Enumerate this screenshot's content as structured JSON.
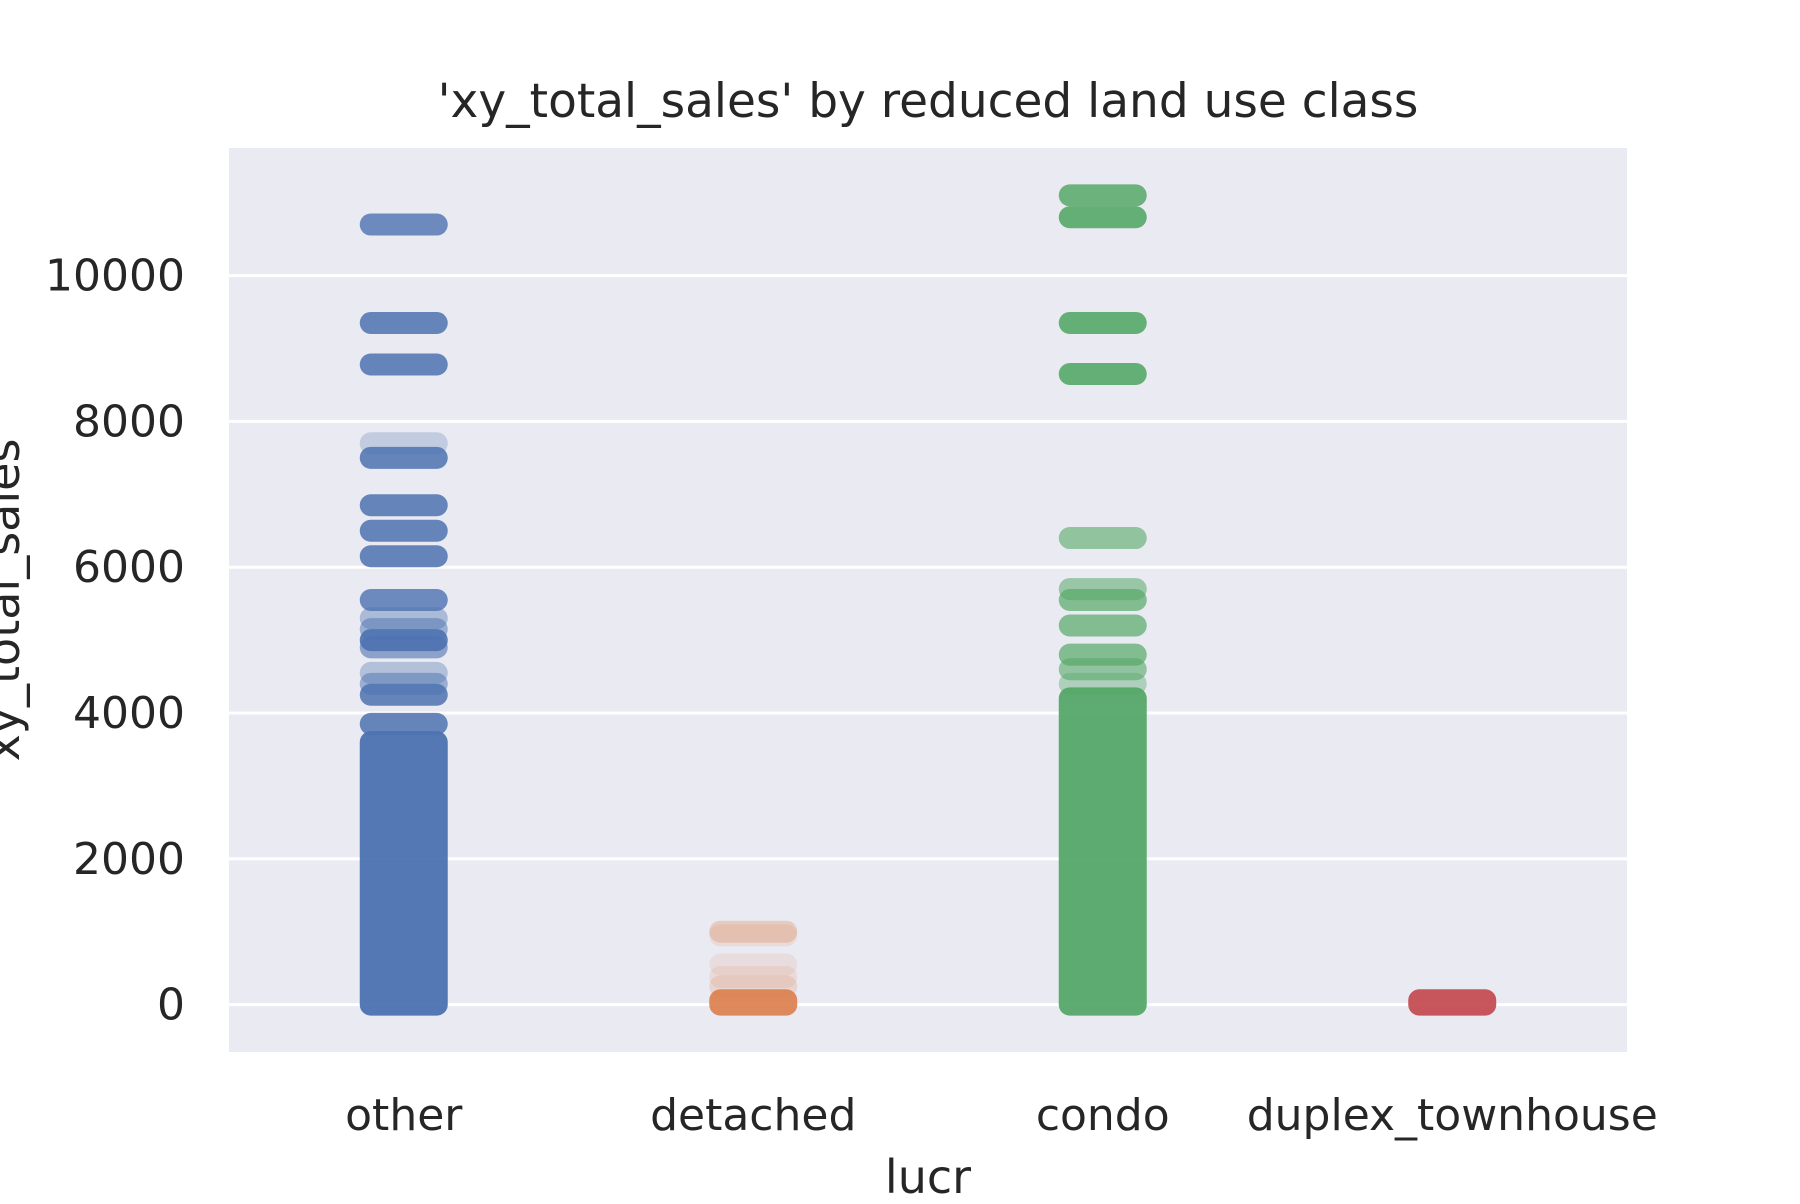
{
  "chart_data": {
    "type": "scatter",
    "subtype": "strip",
    "title": "'xy_total_sales' by reduced land use class",
    "xlabel": "lucr",
    "ylabel": "xy_total_sales",
    "categories": [
      "other",
      "detached",
      "condo",
      "duplex_townhouse"
    ],
    "ylim": [
      -650,
      11750
    ],
    "yticks": [
      0,
      2000,
      4000,
      6000,
      8000,
      10000
    ],
    "grid": true,
    "legend": "none",
    "background_color": "#eaeaf2",
    "grid_color": "#ffffff",
    "series": [
      {
        "category": "other",
        "color": "#4c72b0",
        "solid_range": [
          0,
          3600
        ],
        "bands": [
          {
            "y": 10700,
            "alpha": 0.8
          },
          {
            "y": 9350,
            "alpha": 0.85
          },
          {
            "y": 8780,
            "alpha": 0.85
          },
          {
            "y": 7700,
            "alpha": 0.25
          },
          {
            "y": 7500,
            "alpha": 0.85
          },
          {
            "y": 6850,
            "alpha": 0.85
          },
          {
            "y": 6500,
            "alpha": 0.85
          },
          {
            "y": 6150,
            "alpha": 0.85
          },
          {
            "y": 5550,
            "alpha": 0.8
          },
          {
            "y": 5300,
            "alpha": 0.4
          },
          {
            "y": 5150,
            "alpha": 0.5
          },
          {
            "y": 5000,
            "alpha": 0.9
          },
          {
            "y": 4900,
            "alpha": 0.6
          },
          {
            "y": 4550,
            "alpha": 0.35
          },
          {
            "y": 4400,
            "alpha": 0.5
          },
          {
            "y": 4250,
            "alpha": 0.85
          },
          {
            "y": 3850,
            "alpha": 0.85
          }
        ]
      },
      {
        "category": "detached",
        "color": "#dd8452",
        "solid_range": [
          0,
          60
        ],
        "bands": [
          {
            "y": 1000,
            "alpha": 0.3
          },
          {
            "y": 950,
            "alpha": 0.15
          },
          {
            "y": 550,
            "alpha": 0.12
          },
          {
            "y": 380,
            "alpha": 0.15
          },
          {
            "y": 250,
            "alpha": 0.2
          }
        ]
      },
      {
        "category": "condo",
        "color": "#55a868",
        "solid_range": [
          0,
          4200
        ],
        "bands": [
          {
            "y": 11100,
            "alpha": 0.85
          },
          {
            "y": 10800,
            "alpha": 0.9
          },
          {
            "y": 9350,
            "alpha": 0.9
          },
          {
            "y": 8650,
            "alpha": 0.9
          },
          {
            "y": 6400,
            "alpha": 0.6
          },
          {
            "y": 5700,
            "alpha": 0.55
          },
          {
            "y": 5550,
            "alpha": 0.7
          },
          {
            "y": 5200,
            "alpha": 0.7
          },
          {
            "y": 4800,
            "alpha": 0.7
          },
          {
            "y": 4600,
            "alpha": 0.6
          },
          {
            "y": 4400,
            "alpha": 0.4
          }
        ]
      },
      {
        "category": "duplex_townhouse",
        "color": "#c44e52",
        "solid_range": [
          0,
          60
        ],
        "bands": []
      }
    ]
  }
}
